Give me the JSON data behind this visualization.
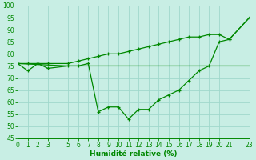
{
  "xlabel": "Humidité relative (%)",
  "background_color": "#c8eee4",
  "grid_color": "#a0d8cc",
  "line_color": "#008800",
  "xlim": [
    0,
    23
  ],
  "ylim": [
    45,
    100
  ],
  "yticks": [
    45,
    50,
    55,
    60,
    65,
    70,
    75,
    80,
    85,
    90,
    95,
    100
  ],
  "xticks": [
    0,
    1,
    2,
    3,
    5,
    6,
    7,
    8,
    9,
    10,
    11,
    12,
    13,
    14,
    15,
    16,
    17,
    18,
    19,
    20,
    21,
    23
  ],
  "line1_x": [
    0,
    1,
    2,
    3,
    5,
    6,
    7,
    8,
    9,
    10,
    11,
    12,
    13,
    14,
    15,
    16,
    17,
    18,
    19,
    20,
    21,
    23
  ],
  "line1_y": [
    76,
    73,
    76,
    74,
    75,
    75,
    76,
    56,
    58,
    58,
    53,
    57,
    57,
    61,
    63,
    65,
    69,
    73,
    75,
    85,
    86,
    95
  ],
  "line2_x": [
    0,
    5,
    20,
    23
  ],
  "line2_y": [
    76,
    75,
    75,
    75
  ],
  "line3_x": [
    0,
    1,
    2,
    3,
    5,
    6,
    7,
    8,
    9,
    10,
    11,
    12,
    13,
    14,
    15,
    16,
    17,
    18,
    19,
    20,
    21,
    23
  ],
  "line3_y": [
    76,
    76,
    76,
    76,
    76,
    77,
    78,
    79,
    80,
    80,
    81,
    82,
    83,
    84,
    85,
    86,
    87,
    87,
    88,
    88,
    86,
    95
  ]
}
